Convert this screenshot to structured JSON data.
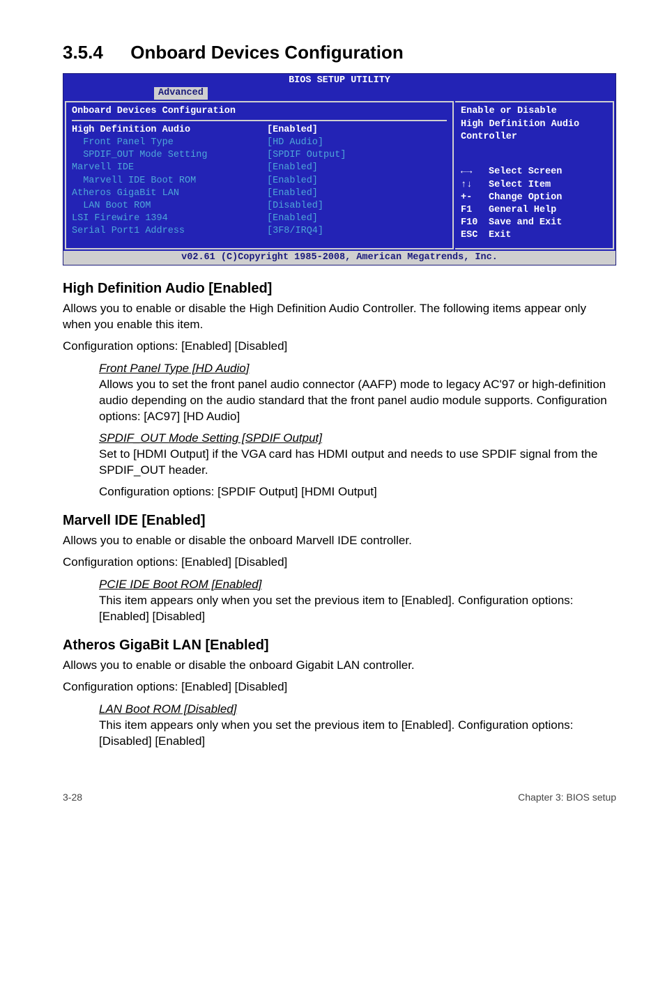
{
  "heading": {
    "number": "3.5.4",
    "title": "Onboard Devices Configuration"
  },
  "bios": {
    "title": "BIOS SETUP UTILITY",
    "tab": "Advanced",
    "panel_header": "Onboard Devices Configuration",
    "rows": [
      {
        "label": "High Definition Audio",
        "value": "[Enabled]",
        "indent": 0,
        "selected": true
      },
      {
        "label": "Front Panel Type",
        "value": "[HD Audio]",
        "indent": 1,
        "selected": false
      },
      {
        "label": "SPDIF_OUT Mode Setting",
        "value": "[SPDIF Output]",
        "indent": 1,
        "selected": false
      },
      {
        "label": "Marvell IDE",
        "value": "[Enabled]",
        "indent": 0,
        "selected": false
      },
      {
        "label": "Marvell IDE Boot ROM",
        "value": "[Enabled]",
        "indent": 1,
        "selected": false
      },
      {
        "label": "Atheros GigaBit LAN",
        "value": "[Enabled]",
        "indent": 0,
        "selected": false
      },
      {
        "label": "LAN Boot ROM",
        "value": "[Disabled]",
        "indent": 1,
        "selected": false
      },
      {
        "label": "LSI Firewire 1394",
        "value": "[Enabled]",
        "indent": 0,
        "selected": false
      },
      {
        "label": "",
        "value": "",
        "indent": 0,
        "selected": false
      },
      {
        "label": "Serial Port1 Address",
        "value": "[3F8/IRQ4]",
        "indent": 0,
        "selected": false
      }
    ],
    "help": {
      "line1": "Enable or Disable",
      "line2": "High Definition Audio",
      "line3": "Controller"
    },
    "legend": [
      {
        "key": "←→",
        "text": "Select Screen"
      },
      {
        "key": "↑↓",
        "text": "Select Item"
      },
      {
        "key": "+-",
        "text": "Change Option"
      },
      {
        "key": "F1",
        "text": "General Help"
      },
      {
        "key": "F10",
        "text": "Save and Exit"
      },
      {
        "key": "ESC",
        "text": "Exit"
      }
    ],
    "copyright": "v02.61 (C)Copyright 1985-2008, American Megatrends, Inc."
  },
  "sections": {
    "hda": {
      "heading": "High Definition Audio [Enabled]",
      "p1": "Allows you to enable or disable the High Definition Audio Controller. The following items appear only when you enable this item.",
      "p2": "Configuration options: [Enabled] [Disabled]",
      "sub1_title": "Front Panel Type [HD Audio]",
      "sub1_body": "Allows you to set the front panel audio connector (AAFP) mode to legacy AC'97 or high-definition audio depending on the audio standard that the front panel audio module supports. Configuration options: [AC97] [HD Audio]",
      "sub2_title": "SPDIF_OUT Mode Setting [SPDIF Output]",
      "sub2_body1": "Set to [HDMI Output] if the VGA card has HDMI output and needs to use SPDIF signal from the SPDIF_OUT header.",
      "sub2_body2": "Configuration options: [SPDIF Output] [HDMI Output]"
    },
    "marvell": {
      "heading": "Marvell IDE [Enabled]",
      "p1": "Allows you to enable or disable the onboard Marvell IDE controller.",
      "p2": "Configuration options: [Enabled] [Disabled]",
      "sub1_title": "PCIE IDE Boot ROM [Enabled]",
      "sub1_body": "This item appears only when you set the previous item to [Enabled]. Configuration options: [Enabled] [Disabled]"
    },
    "atheros": {
      "heading": "Atheros GigaBit LAN [Enabled]",
      "p1": "Allows you to enable or disable the onboard Gigabit LAN controller.",
      "p2": "Configuration options: [Enabled] [Disabled]",
      "sub1_title": "LAN Boot ROM [Disabled]",
      "sub1_body": "This item appears only when you set the previous item to [Enabled]. Configuration options: [Disabled] [Enabled]"
    }
  },
  "footer": {
    "left": "3-28",
    "right": "Chapter 3: BIOS setup"
  }
}
